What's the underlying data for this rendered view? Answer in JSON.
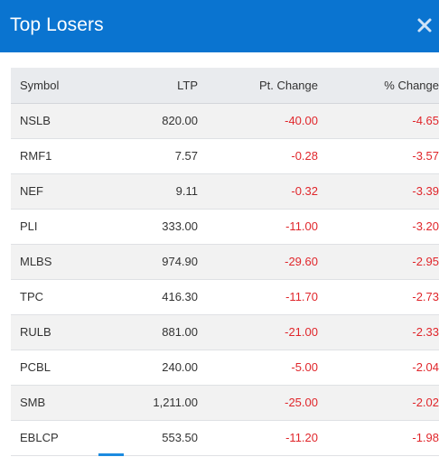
{
  "header": {
    "title": "Top Losers",
    "close_icon": "close-icon"
  },
  "colors": {
    "header_bg": "#0a74d0",
    "negative": "#e0262b",
    "table_header_bg": "#e9ebee"
  },
  "table": {
    "columns": [
      "Symbol",
      "LTP",
      "Pt. Change",
      "% Change"
    ],
    "rows": [
      {
        "symbol": "NSLB",
        "ltp": "820.00",
        "pt_change": "-40.00",
        "pct_change": "-4.65"
      },
      {
        "symbol": "RMF1",
        "ltp": "7.57",
        "pt_change": "-0.28",
        "pct_change": "-3.57"
      },
      {
        "symbol": "NEF",
        "ltp": "9.11",
        "pt_change": "-0.32",
        "pct_change": "-3.39"
      },
      {
        "symbol": "PLI",
        "ltp": "333.00",
        "pt_change": "-11.00",
        "pct_change": "-3.20"
      },
      {
        "symbol": "MLBS",
        "ltp": "974.90",
        "pt_change": "-29.60",
        "pct_change": "-2.95"
      },
      {
        "symbol": "TPC",
        "ltp": "416.30",
        "pt_change": "-11.70",
        "pct_change": "-2.73"
      },
      {
        "symbol": "RULB",
        "ltp": "881.00",
        "pt_change": "-21.00",
        "pct_change": "-2.33"
      },
      {
        "symbol": "PCBL",
        "ltp": "240.00",
        "pt_change": "-5.00",
        "pct_change": "-2.04"
      },
      {
        "symbol": "SMB",
        "ltp": "1,211.00",
        "pt_change": "-25.00",
        "pct_change": "-2.02"
      },
      {
        "symbol": "EBLCP",
        "ltp": "553.50",
        "pt_change": "-11.20",
        "pct_change": "-1.98"
      }
    ]
  }
}
